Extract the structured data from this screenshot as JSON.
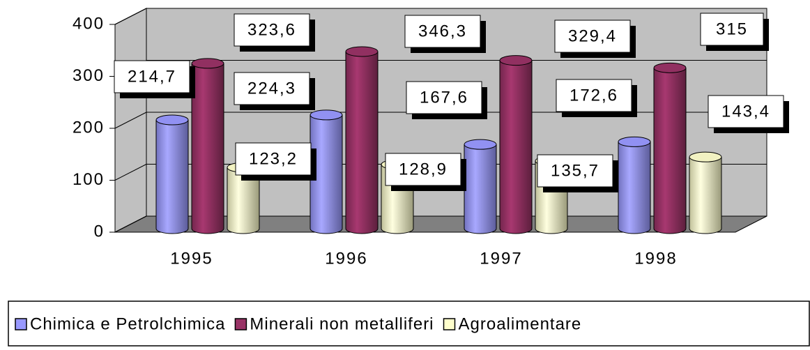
{
  "chart_data": {
    "type": "bar",
    "categories": [
      "1995",
      "1996",
      "1997",
      "1998"
    ],
    "series": [
      {
        "name": "Chimica e Petrolchimica",
        "color": "#9999ff",
        "values": [
          214.7,
          224.3,
          167.6,
          172.6
        ],
        "value_labels": [
          "214,7",
          "224,3",
          "167,6",
          "172,6"
        ]
      },
      {
        "name": "Minerali non metalliferi",
        "color": "#993366",
        "values": [
          323.6,
          346.3,
          329.4,
          315
        ],
        "value_labels": [
          "323,6",
          "346,3",
          "329,4",
          "315"
        ]
      },
      {
        "name": "Agroalimentare",
        "color": "#ffffcc",
        "values": [
          123.2,
          128.9,
          135.7,
          143.4
        ],
        "value_labels": [
          "123,2",
          "128,9",
          "135,7",
          "143,4"
        ]
      }
    ],
    "ylim": [
      0,
      400
    ],
    "yticks": [
      0,
      100,
      200,
      300,
      400
    ],
    "grid": true,
    "legend": "bottom"
  }
}
